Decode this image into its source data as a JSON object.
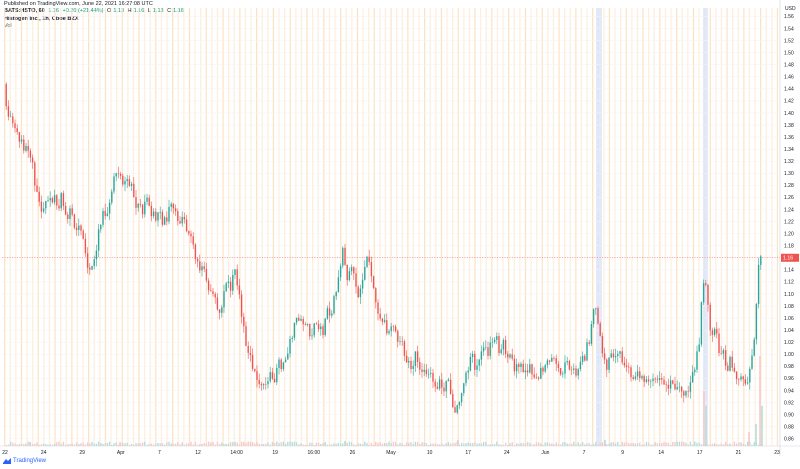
{
  "header": {
    "published": "Published on TradingView.com, June 22, 2021 16:27:08 UTC",
    "symbol": "BATS:HSTO, 60",
    "ohlc": [
      {
        "k": "O",
        "v": "1.13"
      },
      {
        "k": "H",
        "v": "1.16"
      },
      {
        "k": "L",
        "v": "1.13"
      },
      {
        "k": "C",
        "v": "1.16"
      }
    ],
    "last": "1.16",
    "change": "+0.20 (+21.44%)",
    "legend_title": "Histogen Inc., 1h, Cboe BZX",
    "volume_label": "Vol"
  },
  "footer": {
    "brand": "TradingView"
  },
  "colors": {
    "up": "#26a69a",
    "down": "#ef5350",
    "session": "#fde2c1",
    "holiday": "#dbe4f6",
    "last_badge": "#ef5350"
  },
  "chart_data": {
    "type": "candlestick",
    "currency": "USD",
    "y_ticks": [
      0.86,
      0.88,
      0.9,
      0.92,
      0.94,
      0.96,
      0.98,
      1.0,
      1.02,
      1.04,
      1.06,
      1.08,
      1.1,
      1.12,
      1.14,
      1.16,
      1.18,
      1.2,
      1.22,
      1.24,
      1.26,
      1.28,
      1.3,
      1.32,
      1.34,
      1.36,
      1.38,
      1.4,
      1.42,
      1.44,
      1.46,
      1.48,
      1.5,
      1.52,
      1.54,
      1.56
    ],
    "ylim": [
      0.848,
      1.574
    ],
    "last_price": 1.16,
    "x_ticks": [
      "22",
      "24",
      "29",
      "Apr",
      "7",
      "12",
      "14:00",
      "19",
      "16:00",
      "26",
      "May",
      "10",
      "17",
      "24",
      "Jun",
      "7",
      "9",
      "14",
      "17",
      "21",
      "23"
    ],
    "price_points": [
      [
        0,
        1.51
      ],
      [
        3,
        1.47
      ],
      [
        7,
        1.4
      ],
      [
        13,
        1.39
      ],
      [
        18,
        1.36
      ],
      [
        22,
        1.35
      ],
      [
        26,
        1.34
      ],
      [
        30,
        1.33
      ],
      [
        34,
        1.3
      ],
      [
        37,
        1.26
      ],
      [
        40,
        1.24
      ],
      [
        43,
        1.23
      ],
      [
        46,
        1.25
      ],
      [
        49,
        1.26
      ],
      [
        52,
        1.24
      ],
      [
        55,
        1.27
      ],
      [
        58,
        1.23
      ],
      [
        61,
        1.26
      ],
      [
        64,
        1.25
      ],
      [
        67,
        1.23
      ],
      [
        70,
        1.24
      ],
      [
        74,
        1.22
      ],
      [
        78,
        1.21
      ],
      [
        83,
        1.2
      ],
      [
        87,
        1.15
      ],
      [
        91,
        1.13
      ],
      [
        95,
        1.16
      ],
      [
        99,
        1.21
      ],
      [
        103,
        1.23
      ],
      [
        107,
        1.22
      ],
      [
        111,
        1.27
      ],
      [
        115,
        1.3
      ],
      [
        119,
        1.31
      ],
      [
        123,
        1.27
      ],
      [
        127,
        1.3
      ],
      [
        131,
        1.28
      ],
      [
        135,
        1.25
      ],
      [
        139,
        1.26
      ],
      [
        143,
        1.24
      ],
      [
        147,
        1.26
      ],
      [
        151,
        1.24
      ],
      [
        155,
        1.22
      ],
      [
        159,
        1.24
      ],
      [
        163,
        1.22
      ],
      [
        167,
        1.23
      ],
      [
        171,
        1.24
      ],
      [
        175,
        1.25
      ],
      [
        179,
        1.22
      ],
      [
        183,
        1.23
      ],
      [
        187,
        1.2
      ],
      [
        191,
        1.19
      ],
      [
        195,
        1.17
      ],
      [
        199,
        1.13
      ],
      [
        203,
        1.14
      ],
      [
        207,
        1.12
      ],
      [
        211,
        1.11
      ],
      [
        215,
        1.1
      ],
      [
        219,
        1.07
      ],
      [
        223,
        1.09
      ],
      [
        227,
        1.12
      ],
      [
        231,
        1.11
      ],
      [
        235,
        1.14
      ],
      [
        239,
        1.1
      ],
      [
        243,
        1.05
      ],
      [
        247,
        1.01
      ],
      [
        251,
        0.99
      ],
      [
        255,
        0.97
      ],
      [
        259,
        0.95
      ],
      [
        263,
        0.96
      ],
      [
        267,
        0.95
      ],
      [
        271,
        0.97
      ],
      [
        275,
        0.96
      ],
      [
        279,
        0.99
      ],
      [
        283,
        0.98
      ],
      [
        287,
        1.0
      ],
      [
        291,
        1.03
      ],
      [
        295,
        1.05
      ],
      [
        299,
        1.06
      ],
      [
        303,
        1.04
      ],
      [
        307,
        1.05
      ],
      [
        311,
        1.03
      ],
      [
        315,
        1.06
      ],
      [
        319,
        1.05
      ],
      [
        323,
        1.04
      ],
      [
        327,
        1.07
      ],
      [
        331,
        1.06
      ],
      [
        335,
        1.1
      ],
      [
        339,
        1.13
      ],
      [
        343,
        1.18
      ],
      [
        347,
        1.13
      ],
      [
        351,
        1.15
      ],
      [
        355,
        1.12
      ],
      [
        359,
        1.1
      ],
      [
        363,
        1.13
      ],
      [
        367,
        1.16
      ],
      [
        371,
        1.14
      ],
      [
        375,
        1.1
      ],
      [
        379,
        1.05
      ],
      [
        383,
        1.06
      ],
      [
        387,
        1.03
      ],
      [
        391,
        1.05
      ],
      [
        395,
        1.04
      ],
      [
        399,
        1.02
      ],
      [
        403,
        1.01
      ],
      [
        407,
        0.99
      ],
      [
        411,
        0.97
      ],
      [
        415,
        1.0
      ],
      [
        419,
        0.99
      ],
      [
        423,
        0.96
      ],
      [
        427,
        0.98
      ],
      [
        431,
        0.96
      ],
      [
        435,
        0.95
      ],
      [
        439,
        0.95
      ],
      [
        443,
        0.94
      ],
      [
        447,
        0.96
      ],
      [
        451,
        0.93
      ],
      [
        455,
        0.91
      ],
      [
        459,
        0.92
      ],
      [
        463,
        0.95
      ],
      [
        467,
        0.97
      ],
      [
        471,
        1.0
      ],
      [
        475,
        0.98
      ],
      [
        479,
        0.99
      ],
      [
        483,
        1.01
      ],
      [
        487,
        1.0
      ],
      [
        491,
        1.02
      ],
      [
        495,
        1.03
      ],
      [
        499,
        1.01
      ],
      [
        503,
        1.02
      ],
      [
        507,
        1.0
      ],
      [
        511,
        0.99
      ],
      [
        515,
        0.98
      ],
      [
        519,
        0.97
      ],
      [
        523,
        0.98
      ],
      [
        527,
        0.97
      ],
      [
        531,
        0.98
      ],
      [
        535,
        0.96
      ],
      [
        539,
        0.97
      ],
      [
        543,
        0.98
      ],
      [
        547,
        1.0
      ],
      [
        551,
        0.99
      ],
      [
        555,
        0.99
      ],
      [
        559,
        0.98
      ],
      [
        563,
        0.97
      ],
      [
        567,
        0.99
      ],
      [
        571,
        0.98
      ],
      [
        575,
        0.97
      ],
      [
        579,
        0.98
      ],
      [
        583,
        0.99
      ],
      [
        587,
        1.01
      ],
      [
        591,
        1.04
      ],
      [
        595,
        1.08
      ],
      [
        599,
        1.05
      ],
      [
        603,
        0.99
      ],
      [
        607,
        0.98
      ],
      [
        611,
        1.0
      ],
      [
        615,
        0.99
      ],
      [
        619,
        1.0
      ],
      [
        623,
        0.98
      ],
      [
        627,
        0.99
      ],
      [
        631,
        0.97
      ],
      [
        635,
        0.96
      ],
      [
        639,
        0.97
      ],
      [
        643,
        0.96
      ],
      [
        647,
        0.96
      ],
      [
        651,
        0.95
      ],
      [
        655,
        0.96
      ],
      [
        659,
        0.95
      ],
      [
        663,
        0.96
      ],
      [
        667,
        0.95
      ],
      [
        671,
        0.95
      ],
      [
        675,
        0.94
      ],
      [
        679,
        0.95
      ],
      [
        683,
        0.94
      ],
      [
        687,
        0.93
      ],
      [
        691,
        0.95
      ],
      [
        695,
        0.98
      ],
      [
        699,
        1.02
      ],
      [
        703,
        1.13
      ],
      [
        707,
        1.1
      ],
      [
        711,
        1.02
      ],
      [
        715,
        1.05
      ],
      [
        719,
        1.01
      ],
      [
        723,
        1.0
      ],
      [
        727,
        0.98
      ],
      [
        731,
        0.99
      ],
      [
        735,
        0.97
      ],
      [
        739,
        0.96
      ],
      [
        743,
        0.95
      ],
      [
        747,
        0.96
      ],
      [
        751,
        0.98
      ],
      [
        755,
        1.04
      ],
      [
        759,
        1.16
      ],
      [
        761,
        1.16
      ]
    ],
    "volume_spikes": [
      [
        30,
        4
      ],
      [
        120,
        4
      ],
      [
        345,
        5
      ],
      [
        458,
        6
      ],
      [
        605,
        6
      ],
      [
        704,
        55
      ],
      [
        706,
        40
      ],
      [
        749,
        14
      ],
      [
        756,
        22
      ],
      [
        760,
        90
      ],
      [
        762,
        40
      ]
    ]
  }
}
